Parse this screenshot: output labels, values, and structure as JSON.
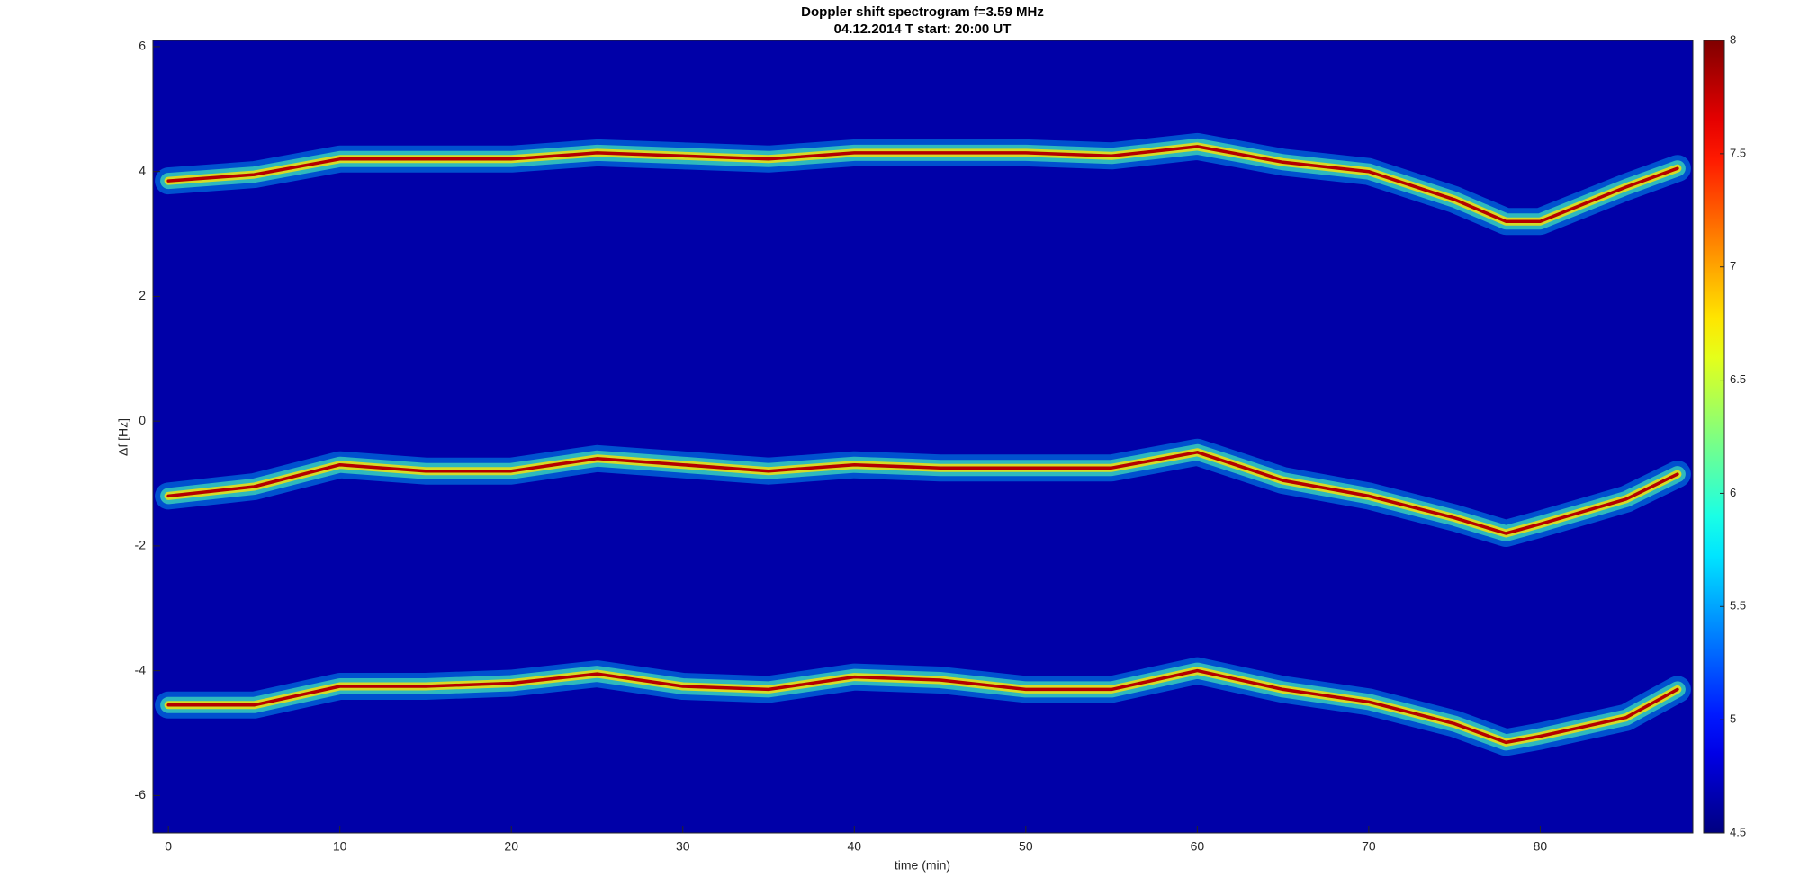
{
  "chart_data": {
    "type": "spectrogram",
    "title": "Doppler shift spectrogram f=3.59 MHz",
    "subtitle": "04.12.2014   T start: 20:00 UT",
    "x_label": "time (min)",
    "y_label": "Δf [Hz]",
    "colormap": "jet",
    "x": [
      0,
      5,
      10,
      15,
      20,
      25,
      30,
      35,
      40,
      45,
      50,
      55,
      60,
      65,
      70,
      75,
      78,
      80,
      85,
      88
    ],
    "series": [
      {
        "color": "#b40000",
        "values": [
          3.85,
          3.95,
          4.2,
          4.2,
          4.2,
          4.3,
          4.25,
          4.2,
          4.3,
          4.3,
          4.3,
          4.25,
          4.4,
          4.15,
          4.0,
          3.55,
          3.2,
          3.2,
          3.75,
          4.05
        ]
      },
      {
        "color": "#b40000",
        "values": [
          -1.2,
          -1.05,
          -0.7,
          -0.8,
          -0.8,
          -0.6,
          -0.7,
          -0.8,
          -0.7,
          -0.75,
          -0.75,
          -0.75,
          -0.5,
          -0.95,
          -1.2,
          -1.55,
          -1.8,
          -1.65,
          -1.25,
          -0.85
        ]
      },
      {
        "color": "#b40000",
        "values": [
          -4.55,
          -4.55,
          -4.25,
          -4.25,
          -4.2,
          -4.05,
          -4.25,
          -4.3,
          -4.1,
          -4.15,
          -4.3,
          -4.3,
          -4.0,
          -4.3,
          -4.5,
          -4.85,
          -5.15,
          -5.05,
          -4.75,
          -4.3
        ]
      }
    ],
    "xlim": [
      -0.9,
      88.9
    ],
    "xticks": [
      0,
      10,
      20,
      30,
      40,
      50,
      60,
      70,
      80
    ],
    "ylim": [
      -6.6,
      6.1
    ],
    "yticks": [
      -6,
      -4,
      -2,
      0,
      2,
      4,
      6
    ],
    "clim": [
      4.5,
      8
    ],
    "cticks": [
      4.5,
      5,
      5.5,
      6,
      6.5,
      7,
      7.5,
      8
    ]
  }
}
